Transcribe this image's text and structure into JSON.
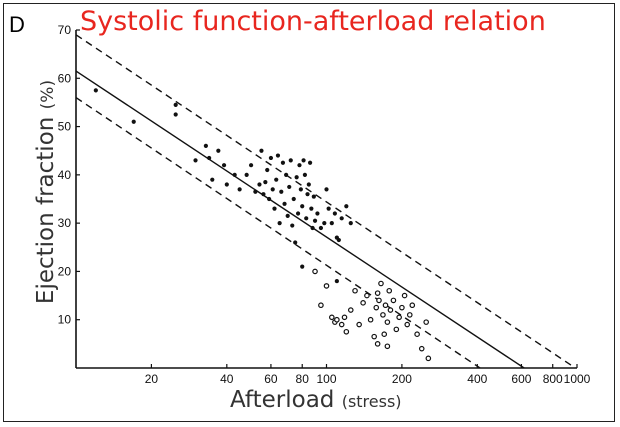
{
  "panel_letter": "D",
  "chart_data": {
    "type": "scatter",
    "title": "Systolic function-afterload relation",
    "ylabel": {
      "main": "Ejection fraction",
      "unit": "(%)"
    },
    "xlabel": {
      "main": "Afterload",
      "unit": "(stress)"
    },
    "x_scale": "log",
    "xlim": [
      10,
      1000
    ],
    "ylim": [
      0,
      70
    ],
    "x_ticks": [
      20,
      40,
      60,
      80,
      100,
      200,
      400,
      600,
      800,
      1000
    ],
    "x_tick_labels": [
      "20",
      "40",
      "60",
      "80",
      "100",
      "200",
      "400",
      "600",
      "800",
      "1000"
    ],
    "y_ticks": [
      10,
      20,
      30,
      40,
      50,
      60,
      70
    ],
    "y_tick_labels": [
      "10",
      "20",
      "30",
      "40",
      "50",
      "60",
      "70"
    ],
    "grid": false,
    "lines": [
      {
        "name": "regression",
        "style": "solid",
        "x": [
          10,
          615
        ],
        "y": [
          61.5,
          0
        ]
      },
      {
        "name": "upper limit",
        "style": "dashed",
        "x": [
          10,
          985
        ],
        "y": [
          69,
          0
        ]
      },
      {
        "name": "lower limit",
        "style": "dashed",
        "x": [
          10,
          410
        ],
        "y": [
          56,
          0
        ]
      }
    ],
    "series": [
      {
        "marker": "filled",
        "points": [
          [
            12,
            57.5
          ],
          [
            17,
            51
          ],
          [
            25,
            54.5
          ],
          [
            25,
            52.5
          ],
          [
            30,
            43
          ],
          [
            33,
            46
          ],
          [
            34,
            43.5
          ],
          [
            35,
            39
          ],
          [
            37,
            45
          ],
          [
            39,
            42
          ],
          [
            40,
            38
          ],
          [
            43,
            40
          ],
          [
            45,
            37
          ],
          [
            48,
            40
          ],
          [
            50,
            42
          ],
          [
            52,
            36.5
          ],
          [
            54,
            38
          ],
          [
            55,
            45
          ],
          [
            56,
            36
          ],
          [
            57,
            38.5
          ],
          [
            58,
            41
          ],
          [
            59,
            35
          ],
          [
            60,
            43.5
          ],
          [
            61,
            37
          ],
          [
            62,
            33
          ],
          [
            63,
            39
          ],
          [
            64,
            44
          ],
          [
            65,
            30
          ],
          [
            66,
            36.5
          ],
          [
            67,
            42.5
          ],
          [
            68,
            34
          ],
          [
            69,
            40
          ],
          [
            70,
            31.5
          ],
          [
            71,
            37.5
          ],
          [
            72,
            43
          ],
          [
            73,
            29.5
          ],
          [
            74,
            35
          ],
          [
            75,
            26
          ],
          [
            76,
            39.5
          ],
          [
            77,
            32
          ],
          [
            78,
            42
          ],
          [
            79,
            37
          ],
          [
            80,
            33.5
          ],
          [
            81,
            43
          ],
          [
            82,
            40
          ],
          [
            83,
            31
          ],
          [
            84,
            36
          ],
          [
            85,
            38
          ],
          [
            86,
            42.5
          ],
          [
            87,
            33
          ],
          [
            88,
            29
          ],
          [
            89,
            35.5
          ],
          [
            90,
            30.5
          ],
          [
            92,
            32
          ],
          [
            95,
            29
          ],
          [
            98,
            30
          ],
          [
            100,
            37
          ],
          [
            102,
            33
          ],
          [
            105,
            30
          ],
          [
            108,
            32
          ],
          [
            110,
            27
          ],
          [
            112,
            26.5
          ],
          [
            115,
            31
          ],
          [
            120,
            33.5
          ],
          [
            125,
            30
          ],
          [
            80,
            21
          ],
          [
            110,
            18
          ]
        ]
      },
      {
        "marker": "open",
        "points": [
          [
            90,
            20
          ],
          [
            100,
            17
          ],
          [
            95,
            13
          ],
          [
            105,
            10.5
          ],
          [
            108,
            9.5
          ],
          [
            110,
            10
          ],
          [
            115,
            9
          ],
          [
            118,
            10.5
          ],
          [
            120,
            7.5
          ],
          [
            125,
            12
          ],
          [
            130,
            16
          ],
          [
            135,
            9
          ],
          [
            140,
            13.5
          ],
          [
            145,
            15
          ],
          [
            150,
            10
          ],
          [
            155,
            6.5
          ],
          [
            158,
            12.5
          ],
          [
            160,
            15.5
          ],
          [
            162,
            14
          ],
          [
            165,
            17.5
          ],
          [
            168,
            11
          ],
          [
            170,
            7
          ],
          [
            172,
            13
          ],
          [
            175,
            9.5
          ],
          [
            178,
            16
          ],
          [
            180,
            12
          ],
          [
            185,
            14
          ],
          [
            190,
            8
          ],
          [
            195,
            10.5
          ],
          [
            200,
            12.5
          ],
          [
            205,
            15
          ],
          [
            210,
            9
          ],
          [
            215,
            11
          ],
          [
            220,
            13
          ],
          [
            230,
            7
          ],
          [
            240,
            4
          ],
          [
            250,
            9.5
          ],
          [
            255,
            2
          ],
          [
            160,
            5
          ],
          [
            175,
            4.5
          ]
        ]
      }
    ]
  }
}
